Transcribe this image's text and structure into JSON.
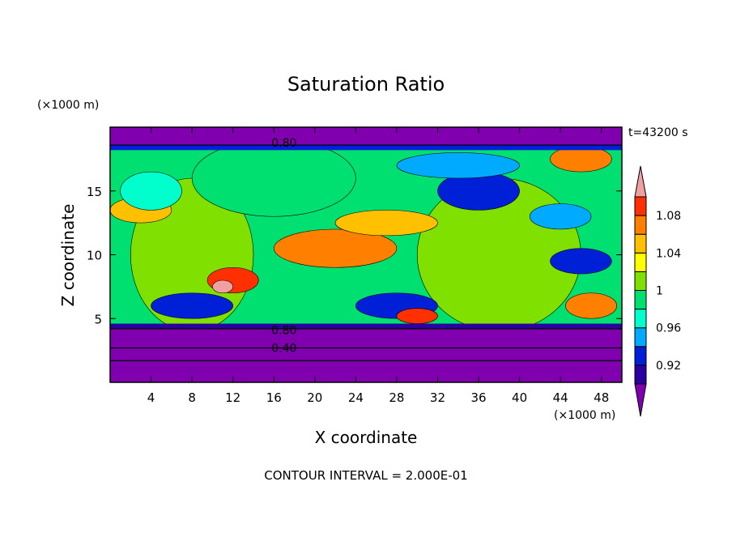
{
  "chart_data": {
    "type": "heatmap",
    "title": "Saturation Ratio",
    "xlabel": "X coordinate",
    "ylabel": "Z coordinate",
    "x_unit": "(×1000 m)",
    "y_unit": "(×1000 m)",
    "time_label": "t=43200 s",
    "footer": "CONTOUR INTERVAL = 2.000E-01",
    "xlim": [
      0,
      50
    ],
    "ylim": [
      0,
      20
    ],
    "x_ticks": [
      4,
      8,
      12,
      16,
      20,
      24,
      28,
      32,
      36,
      40,
      44,
      48
    ],
    "y_ticks": [
      5,
      10,
      15
    ],
    "contour_labels": [
      {
        "text": "0.80",
        "x": 17,
        "z": 18.8
      },
      {
        "text": "0.80",
        "x": 17,
        "z": 4.1
      },
      {
        "text": "0.40",
        "x": 17,
        "z": 2.7
      }
    ],
    "colorbar": {
      "labels": [
        "1.08",
        "1.04",
        "1",
        "0.96",
        "0.92"
      ],
      "label_values": [
        1.08,
        1.04,
        1.0,
        0.96,
        0.92
      ],
      "min_value": 0.9,
      "step": 0.02,
      "colors": [
        "#8000b0",
        "#2a00a0",
        "#0020d8",
        "#00aaff",
        "#00ffcc",
        "#00e070",
        "#80e000",
        "#ffff00",
        "#ffc000",
        "#ff8000",
        "#ff3000",
        "#f0a0a0"
      ]
    },
    "bands": [
      {
        "z0": 0,
        "z1": 4.2,
        "level": 0
      },
      {
        "z0": 18.6,
        "z1": 20,
        "level": 0
      },
      {
        "z0": 4.2,
        "z1": 4.6,
        "level": 1
      },
      {
        "z0": 18.2,
        "z1": 18.6,
        "level": 2
      }
    ],
    "regions": [
      {
        "cx": 8,
        "cz": 10,
        "rx": 6,
        "rz": 6,
        "level": 6
      },
      {
        "cx": 38,
        "cz": 10,
        "rx": 8,
        "rz": 6,
        "level": 6
      },
      {
        "cx": 16,
        "cz": 16,
        "rx": 8,
        "rz": 3,
        "level": 5
      },
      {
        "cx": 3,
        "cz": 13.5,
        "rx": 3,
        "rz": 1,
        "level": 8
      },
      {
        "cx": 22,
        "cz": 10.5,
        "rx": 6,
        "rz": 1.5,
        "level": 9
      },
      {
        "cx": 27,
        "cz": 12.5,
        "rx": 5,
        "rz": 1,
        "level": 8
      },
      {
        "cx": 12,
        "cz": 8,
        "rx": 2.5,
        "rz": 1,
        "level": 10
      },
      {
        "cx": 11,
        "cz": 7.5,
        "rx": 1,
        "rz": 0.5,
        "level": 11
      },
      {
        "cx": 36,
        "cz": 15,
        "rx": 4,
        "rz": 1.5,
        "level": 2
      },
      {
        "cx": 34,
        "cz": 17,
        "rx": 6,
        "rz": 1,
        "level": 3
      },
      {
        "cx": 44,
        "cz": 13,
        "rx": 3,
        "rz": 1,
        "level": 3
      },
      {
        "cx": 8,
        "cz": 6,
        "rx": 4,
        "rz": 1,
        "level": 2
      },
      {
        "cx": 28,
        "cz": 6,
        "rx": 4,
        "rz": 1,
        "level": 2
      },
      {
        "cx": 47,
        "cz": 6,
        "rx": 2.5,
        "rz": 1,
        "level": 9
      },
      {
        "cx": 30,
        "cz": 5.2,
        "rx": 2,
        "rz": 0.6,
        "level": 10
      },
      {
        "cx": 46,
        "cz": 17.5,
        "rx": 3,
        "rz": 1,
        "level": 9
      },
      {
        "cx": 4,
        "cz": 15,
        "rx": 3,
        "rz": 1.5,
        "level": 4
      },
      {
        "cx": 46,
        "cz": 9.5,
        "rx": 3,
        "rz": 1,
        "level": 2
      }
    ]
  }
}
